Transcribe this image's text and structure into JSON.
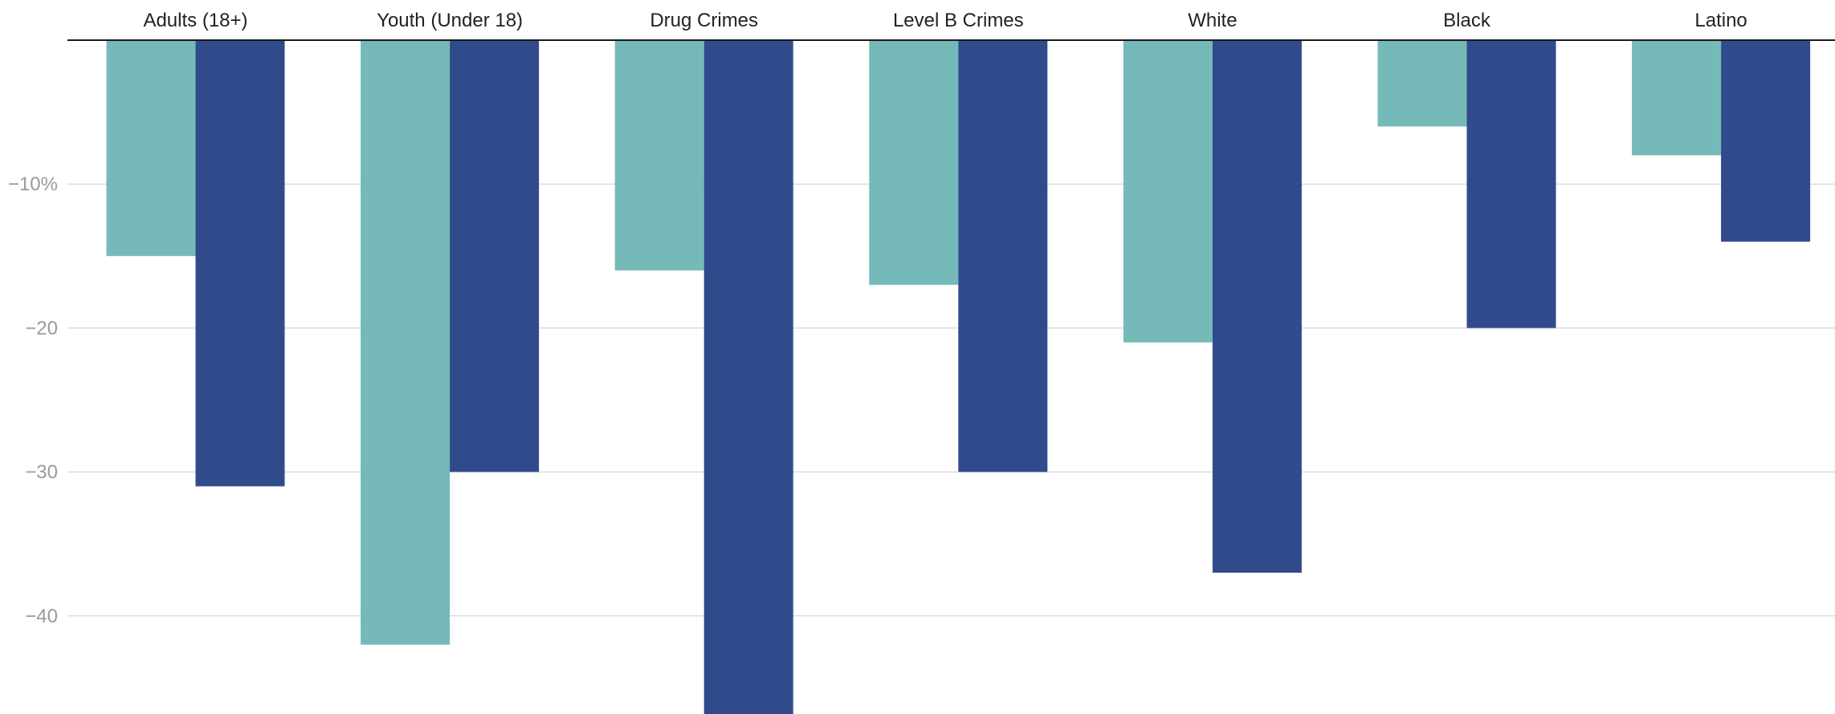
{
  "chart_data": {
    "type": "bar",
    "orientation": "vertical",
    "categories": [
      "Adults (18+)",
      "Youth (Under 18)",
      "Drug Crimes",
      "Level B Crimes",
      "White",
      "Black",
      "Latino"
    ],
    "series": [
      {
        "values": [
          -15,
          -42,
          -16,
          -17,
          -21,
          -6,
          -8
        ],
        "color": "#76b9b9"
      },
      {
        "values": [
          -31,
          -30,
          -47,
          -30,
          -37,
          -20,
          -14
        ],
        "color": "#304b8c"
      }
    ],
    "y_ticks": [
      {
        "value": -10,
        "label": "−10%"
      },
      {
        "value": -20,
        "label": "−20"
      },
      {
        "value": -30,
        "label": "−30"
      },
      {
        "value": -40,
        "label": "−40"
      }
    ],
    "ylim": [
      -47,
      0
    ],
    "category_labels_position": "top",
    "grid": true,
    "legend": "none"
  }
}
